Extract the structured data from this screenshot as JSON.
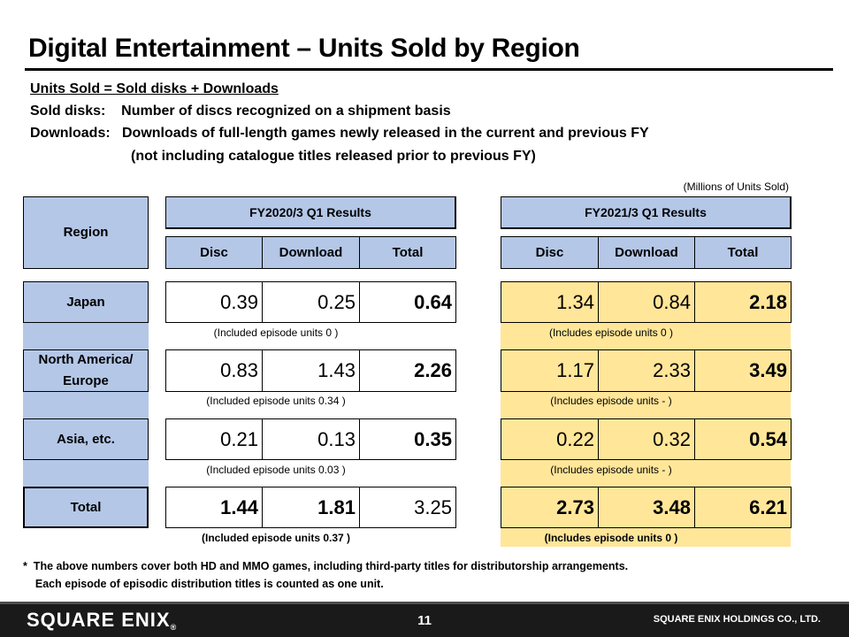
{
  "title": "Digital Entertainment – Units Sold by Region",
  "definitions": [
    "Units Sold = Sold disks + Downloads",
    "Sold disks:    Number of discs recognized on a shipment basis",
    "Downloads:   Downloads of full-length games newly released in the current and previous FY",
    "(not including catalogue titles released prior to previous FY)"
  ],
  "unit_note": "(Millions of Units Sold)",
  "table": {
    "region_header": "Region",
    "periods": [
      {
        "label": "FY2020/3 Q1 Results",
        "columns": [
          "Disc",
          "Download",
          "Total"
        ]
      },
      {
        "label": "FY2021/3 Q1 Results",
        "columns": [
          "Disc",
          "Download",
          "Total"
        ]
      }
    ],
    "rows": [
      {
        "region": "Japan",
        "fy2020": [
          "0.39",
          "0.25",
          "0.64"
        ],
        "fy2021": [
          "1.34",
          "0.84",
          "2.18"
        ],
        "note2020": "(Included episode units 0 )",
        "note2021": "(Includes episode units 0 )"
      },
      {
        "region": "North America/ Europe",
        "fy2020": [
          "0.83",
          "1.43",
          "2.26"
        ],
        "fy2021": [
          "1.17",
          "2.33",
          "3.49"
        ],
        "note2020": "(Included episode units 0.34 )",
        "note2021": "(Includes episode units - )"
      },
      {
        "region": "Asia, etc.",
        "fy2020": [
          "0.21",
          "0.13",
          "0.35"
        ],
        "fy2021": [
          "0.22",
          "0.32",
          "0.54"
        ],
        "note2020": "(Included episode units 0.03 )",
        "note2021": "(Includes episode units - )"
      },
      {
        "region": "Total",
        "fy2020": [
          "1.44",
          "1.81",
          "3.25"
        ],
        "fy2021": [
          "2.73",
          "3.48",
          "6.21"
        ],
        "note2020": "(Included episode units 0.37 )",
        "note2021": "(Includes episode units 0 )"
      }
    ]
  },
  "footnotes": [
    "*  The above numbers cover both HD and MMO games, including third-party titles for distributorship arrangements.",
    "    Each episode of episodic distribution titles is counted as one unit."
  ],
  "footer": {
    "logo": "SQUARE ENIX",
    "logo_mark": "®",
    "page_number": "11",
    "company": "SQUARE ENIX HOLDINGS CO., LTD."
  },
  "colors": {
    "header_blue": "#b4c7e7",
    "highlight_yellow": "#ffe699",
    "footer_bg": "#1a1a1a"
  }
}
